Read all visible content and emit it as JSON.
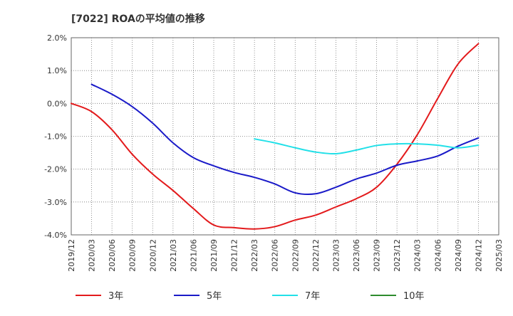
{
  "chart_data": {
    "type": "line",
    "title": "[7022]  ROAの平均値の推移",
    "x_ticks": [
      "2019/12",
      "2020/03",
      "2020/06",
      "2020/09",
      "2020/12",
      "2021/03",
      "2021/06",
      "2021/09",
      "2021/12",
      "2022/03",
      "2022/06",
      "2022/09",
      "2022/12",
      "2023/03",
      "2023/06",
      "2023/09",
      "2023/12",
      "2024/03",
      "2024/06",
      "2024/09",
      "2024/12",
      "2025/03"
    ],
    "y_ticks": [
      "2.0%",
      "1.0%",
      "0.0%",
      "-1.0%",
      "-2.0%",
      "-3.0%",
      "-4.0%"
    ],
    "ylim": [
      -4.0,
      2.0
    ],
    "y_unit": "%",
    "grid": true,
    "legend_position": "bottom",
    "series": [
      {
        "name": "3年",
        "color": "#e31a1c",
        "points": [
          [
            "2019/12",
            0.0
          ],
          [
            "2020/03",
            -0.25
          ],
          [
            "2020/06",
            -0.8
          ],
          [
            "2020/09",
            -1.55
          ],
          [
            "2020/12",
            -2.15
          ],
          [
            "2021/03",
            -2.65
          ],
          [
            "2021/06",
            -3.2
          ],
          [
            "2021/09",
            -3.7
          ],
          [
            "2021/12",
            -3.78
          ],
          [
            "2022/03",
            -3.82
          ],
          [
            "2022/06",
            -3.75
          ],
          [
            "2022/09",
            -3.55
          ],
          [
            "2022/12",
            -3.4
          ],
          [
            "2023/03",
            -3.15
          ],
          [
            "2023/06",
            -2.9
          ],
          [
            "2023/09",
            -2.55
          ],
          [
            "2023/12",
            -1.85
          ],
          [
            "2024/03",
            -0.95
          ],
          [
            "2024/06",
            0.15
          ],
          [
            "2024/09",
            1.2
          ],
          [
            "2024/12",
            1.82
          ]
        ]
      },
      {
        "name": "5年",
        "color": "#1a1ac8",
        "points": [
          [
            "2020/03",
            0.58
          ],
          [
            "2020/06",
            0.28
          ],
          [
            "2020/09",
            -0.1
          ],
          [
            "2020/12",
            -0.6
          ],
          [
            "2021/03",
            -1.2
          ],
          [
            "2021/06",
            -1.65
          ],
          [
            "2021/09",
            -1.9
          ],
          [
            "2021/12",
            -2.1
          ],
          [
            "2022/03",
            -2.25
          ],
          [
            "2022/06",
            -2.45
          ],
          [
            "2022/09",
            -2.72
          ],
          [
            "2022/12",
            -2.75
          ],
          [
            "2023/03",
            -2.55
          ],
          [
            "2023/06",
            -2.3
          ],
          [
            "2023/09",
            -2.12
          ],
          [
            "2023/12",
            -1.88
          ],
          [
            "2024/03",
            -1.75
          ],
          [
            "2024/06",
            -1.6
          ],
          [
            "2024/09",
            -1.3
          ],
          [
            "2024/12",
            -1.05
          ]
        ]
      },
      {
        "name": "7年",
        "color": "#22e0e8",
        "points": [
          [
            "2022/03",
            -1.08
          ],
          [
            "2022/06",
            -1.2
          ],
          [
            "2022/09",
            -1.35
          ],
          [
            "2022/12",
            -1.48
          ],
          [
            "2023/03",
            -1.53
          ],
          [
            "2023/06",
            -1.42
          ],
          [
            "2023/09",
            -1.28
          ],
          [
            "2023/12",
            -1.23
          ],
          [
            "2024/03",
            -1.23
          ],
          [
            "2024/06",
            -1.27
          ],
          [
            "2024/09",
            -1.35
          ],
          [
            "2024/12",
            -1.27
          ]
        ]
      },
      {
        "name": "10年",
        "color": "#2e8b2e",
        "points": []
      }
    ]
  }
}
